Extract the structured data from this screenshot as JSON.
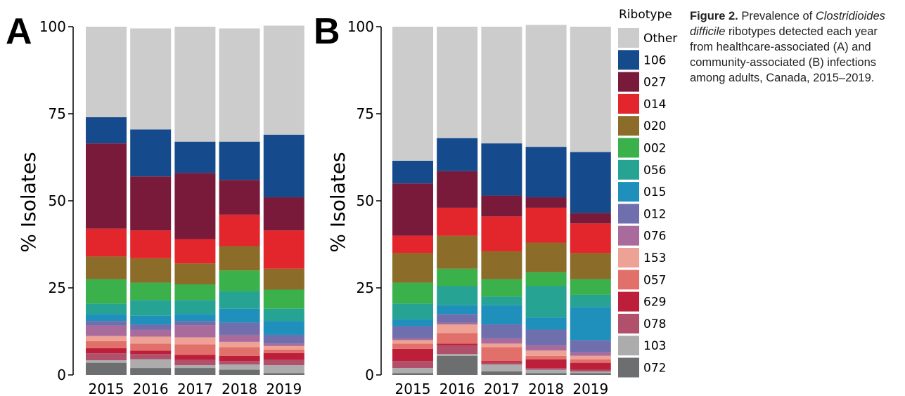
{
  "caption": {
    "label": "Figure 2.",
    "lead": " Prevalence of ",
    "organism": "Clostridioides difficile",
    "rest": " ribotypes detected each year from healthcare-associated (A) and community-associated (B) infections among adults, Canada, 2015–2019."
  },
  "legend": {
    "title": "Ribotype",
    "items": [
      {
        "name": "Other",
        "color": "#cccccc"
      },
      {
        "name": "106",
        "color": "#154a8c"
      },
      {
        "name": "027",
        "color": "#7a1a3a"
      },
      {
        "name": "014",
        "color": "#e3252c"
      },
      {
        "name": "020",
        "color": "#8b6c28"
      },
      {
        "name": "002",
        "color": "#3ab14a"
      },
      {
        "name": "056",
        "color": "#27a394"
      },
      {
        "name": "015",
        "color": "#1f8fbc"
      },
      {
        "name": "012",
        "color": "#6f6fae"
      },
      {
        "name": "076",
        "color": "#a86b9b"
      },
      {
        "name": "153",
        "color": "#eda295"
      },
      {
        "name": "057",
        "color": "#e2706a"
      },
      {
        "name": "629",
        "color": "#bd1f3a"
      },
      {
        "name": "078",
        "color": "#b0506b"
      },
      {
        "name": "103",
        "color": "#acacac"
      },
      {
        "name": "072",
        "color": "#6c6e70"
      }
    ]
  },
  "chart_data": [
    {
      "type": "bar",
      "stacked": true,
      "panel": "A",
      "categories": [
        "2015",
        "2016",
        "2017",
        "2018",
        "2019"
      ],
      "ylabel": "% Isolates",
      "ylim": [
        0,
        100
      ],
      "yticks": [
        0,
        25,
        50,
        75,
        100
      ],
      "series": [
        {
          "name": "072",
          "values": [
            3.5,
            2.0,
            2.0,
            1.5,
            0.5
          ]
        },
        {
          "name": "103",
          "values": [
            0.7,
            2.5,
            0.8,
            1.5,
            2.3
          ]
        },
        {
          "name": "078",
          "values": [
            2.0,
            1.5,
            1.5,
            1.0,
            1.5
          ]
        },
        {
          "name": "629",
          "values": [
            1.5,
            1.0,
            1.5,
            1.5,
            2.0
          ]
        },
        {
          "name": "057",
          "values": [
            2.0,
            2.0,
            3.0,
            2.5,
            1.0
          ]
        },
        {
          "name": "153",
          "values": [
            1.5,
            2.0,
            2.0,
            1.5,
            1.0
          ]
        },
        {
          "name": "076",
          "values": [
            3.0,
            2.0,
            3.5,
            2.0,
            0.7
          ]
        },
        {
          "name": "012",
          "values": [
            1.3,
            1.5,
            1.2,
            3.5,
            2.5
          ]
        },
        {
          "name": "015",
          "values": [
            2.0,
            2.5,
            2.0,
            4.0,
            4.0
          ]
        },
        {
          "name": "056",
          "values": [
            3.0,
            4.5,
            4.0,
            5.0,
            3.5
          ]
        },
        {
          "name": "002",
          "values": [
            7.0,
            5.0,
            4.5,
            6.0,
            5.5
          ]
        },
        {
          "name": "020",
          "values": [
            6.5,
            7.0,
            6.0,
            7.0,
            6.0
          ]
        },
        {
          "name": "014",
          "values": [
            8.0,
            8.0,
            7.0,
            9.0,
            11.0
          ]
        },
        {
          "name": "027",
          "values": [
            24.5,
            15.5,
            19.0,
            10.0,
            9.5
          ]
        },
        {
          "name": "106",
          "values": [
            7.5,
            13.5,
            9.0,
            11.0,
            18.0
          ]
        },
        {
          "name": "Other",
          "values": [
            26.0,
            29.0,
            33.0,
            32.5,
            31.3
          ]
        }
      ]
    },
    {
      "type": "bar",
      "stacked": true,
      "panel": "B",
      "categories": [
        "2015",
        "2016",
        "2017",
        "2018",
        "2019"
      ],
      "ylabel": "% Isolates",
      "ylim": [
        0,
        100
      ],
      "yticks": [
        0,
        25,
        50,
        75,
        100
      ],
      "series": [
        {
          "name": "072",
          "values": [
            0.5,
            5.5,
            1.0,
            0.5,
            0.5
          ]
        },
        {
          "name": "103",
          "values": [
            1.5,
            0.5,
            2.0,
            1.0,
            0.5
          ]
        },
        {
          "name": "078",
          "values": [
            2.0,
            2.5,
            0.5,
            0.5,
            0.5
          ]
        },
        {
          "name": "629",
          "values": [
            3.5,
            0.5,
            0.5,
            2.5,
            2.0
          ]
        },
        {
          "name": "057",
          "values": [
            1.5,
            3.0,
            4.0,
            1.0,
            1.0
          ]
        },
        {
          "name": "153",
          "values": [
            1.0,
            2.5,
            1.0,
            1.5,
            1.0
          ]
        },
        {
          "name": "076",
          "values": [
            0.5,
            0.5,
            1.5,
            1.5,
            1.0
          ]
        },
        {
          "name": "012",
          "values": [
            3.5,
            2.5,
            4.0,
            4.5,
            3.5
          ]
        },
        {
          "name": "015",
          "values": [
            2.0,
            2.5,
            5.5,
            3.5,
            9.5
          ]
        },
        {
          "name": "056",
          "values": [
            4.5,
            5.5,
            2.5,
            9.0,
            3.5
          ]
        },
        {
          "name": "002",
          "values": [
            6.0,
            5.0,
            5.0,
            4.0,
            4.5
          ]
        },
        {
          "name": "020",
          "values": [
            8.5,
            9.5,
            8.0,
            8.5,
            7.5
          ]
        },
        {
          "name": "014",
          "values": [
            5.0,
            8.0,
            10.0,
            10.0,
            8.5
          ]
        },
        {
          "name": "027",
          "values": [
            15.0,
            10.5,
            6.0,
            3.0,
            3.0
          ]
        },
        {
          "name": "106",
          "values": [
            6.5,
            9.5,
            15.0,
            14.5,
            17.5
          ]
        },
        {
          "name": "Other",
          "values": [
            38.5,
            32.0,
            33.5,
            35.0,
            36.0
          ]
        }
      ]
    }
  ]
}
